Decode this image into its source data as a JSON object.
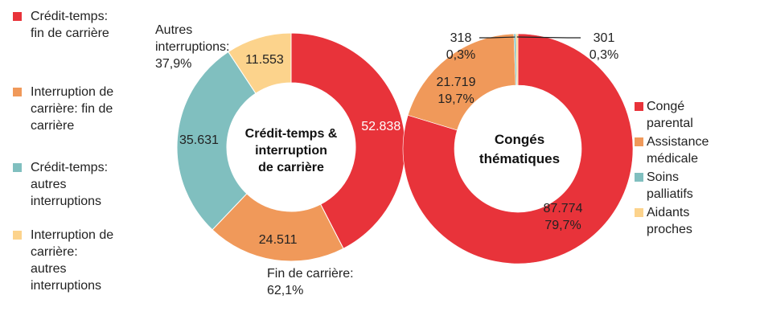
{
  "chart_data": [
    {
      "type": "pie",
      "donut": true,
      "title": "Crédit-temps & interruption de carrière",
      "categories": [
        "Crédit-temps: fin de carrière",
        "Interruption de carrière: fin de carrière",
        "Crédit-temps: autres interruptions",
        "Interruption de carrière: autres interruptions"
      ],
      "values": [
        52838,
        24511,
        35631,
        11553
      ],
      "value_labels": [
        "52.838",
        "24.511",
        "35.631",
        "11.553"
      ],
      "colors": [
        "#e8333a",
        "#f0995a",
        "#80bfbf",
        "#fcd38c"
      ],
      "group_annotations": [
        {
          "text_lines": [
            "Fin de carrière:",
            "62,1%"
          ]
        },
        {
          "text_lines": [
            "Autres",
            "interruptions:",
            "37,9%"
          ]
        }
      ],
      "legend_position": "left",
      "legend": [
        {
          "color": "#e8333a",
          "lines": [
            "Crédit-temps:",
            "fin de carrière"
          ]
        },
        {
          "color": "#f0995a",
          "lines": [
            "Interruption de",
            "carrière: fin de",
            "carrière"
          ]
        },
        {
          "color": "#80bfbf",
          "lines": [
            "Crédit-temps:",
            "autres",
            "interruptions"
          ]
        },
        {
          "color": "#fcd38c",
          "lines": [
            "Interruption de",
            "carrière:",
            "autres",
            "interruptions"
          ]
        }
      ]
    },
    {
      "type": "pie",
      "donut": true,
      "title": "Congés thématiques",
      "categories": [
        "Congé parental",
        "Assistance médicale",
        "Soins palliatifs",
        "Aidants proches"
      ],
      "values": [
        87774,
        21719,
        318,
        301
      ],
      "value_labels": [
        "87.774",
        "21.719",
        "318",
        "301"
      ],
      "percent_labels": [
        "79,7%",
        "19,7%",
        "0,3%",
        "0,3%"
      ],
      "colors": [
        "#e8333a",
        "#f0995a",
        "#80bfbf",
        "#fcd38c"
      ],
      "legend_position": "right",
      "legend": [
        {
          "color": "#e8333a",
          "lines": [
            "Congé",
            "parental"
          ]
        },
        {
          "color": "#f0995a",
          "lines": [
            "Assistance",
            "médicale"
          ]
        },
        {
          "color": "#80bfbf",
          "lines": [
            "Soins",
            "palliatifs"
          ]
        },
        {
          "color": "#fcd38c",
          "lines": [
            "Aidants",
            "proches"
          ]
        }
      ]
    }
  ]
}
